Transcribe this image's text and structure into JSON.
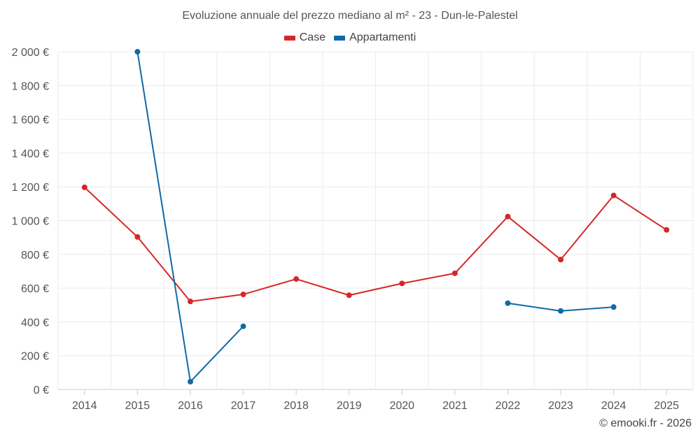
{
  "chart_data": {
    "type": "line",
    "title": "Evoluzione annuale del prezzo mediano al m² - 23 - Dun-le-Palestel",
    "categories": [
      "2014",
      "2015",
      "2016",
      "2017",
      "2018",
      "2019",
      "2020",
      "2021",
      "2022",
      "2023",
      "2024",
      "2025"
    ],
    "ylim": [
      0,
      2000
    ],
    "yticks": [
      0,
      200,
      400,
      600,
      800,
      1000,
      1200,
      1400,
      1600,
      1800,
      2000
    ],
    "ytick_labels": [
      "0 €",
      "200 €",
      "400 €",
      "600 €",
      "800 €",
      "1 000 €",
      "1 200 €",
      "1 400 €",
      "1 600 €",
      "1 800 €",
      "2 000 €"
    ],
    "grid": true,
    "legend_position": "top-center",
    "series": [
      {
        "name": "Case",
        "color": "#d62728",
        "values": [
          1197,
          903,
          521,
          563,
          654,
          558,
          628,
          688,
          1024,
          769,
          1149,
          945
        ]
      },
      {
        "name": "Appartamenti",
        "color": "#0e6aa8",
        "values": [
          null,
          2000,
          46,
          374,
          null,
          null,
          null,
          null,
          511,
          465,
          488,
          null
        ]
      }
    ]
  },
  "credit": "© emooki.fr - 2026"
}
